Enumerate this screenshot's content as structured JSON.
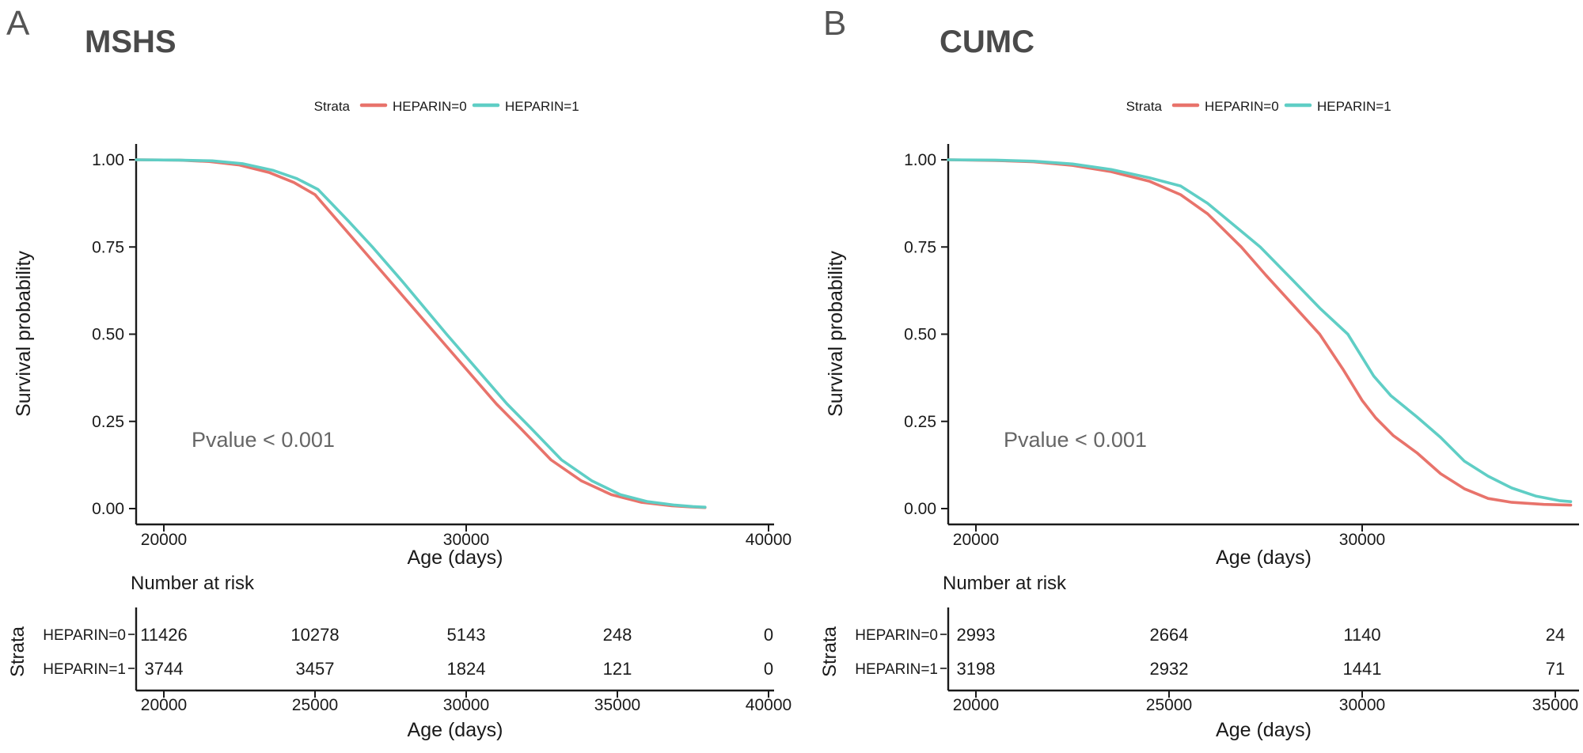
{
  "figure": {
    "background": "#ffffff"
  },
  "colors": {
    "heparin0": "#E8736B",
    "heparin1": "#5FCEC5",
    "title_gray": "#4a4a4a",
    "pvalue_gray": "#666666",
    "axis_black": "#1a1a1a"
  },
  "panels": [
    {
      "letter": "A",
      "title": "MSHS",
      "legend": {
        "title": "Strata",
        "items": [
          {
            "label": "HEPARIN=0",
            "color": "#E8736B"
          },
          {
            "label": "HEPARIN=1",
            "color": "#5FCEC5"
          }
        ]
      },
      "pvalue": "Pvalue < 0.001",
      "xlabel": "Age (days)",
      "ylabel": "Survival probability",
      "yticks": [
        "1.00",
        "0.75",
        "0.50",
        "0.25",
        "0.00"
      ],
      "xticks_main": [
        "20000",
        "30000",
        "40000"
      ],
      "risk": {
        "header": "Number at risk",
        "strata_label": "Strata",
        "xticks": [
          "20000",
          "25000",
          "30000",
          "35000",
          "40000"
        ],
        "rows": [
          {
            "label": "HEPARIN=0",
            "color": "#E8736B",
            "counts": [
              "11426",
              "10278",
              "5143",
              "248",
              "0"
            ]
          },
          {
            "label": "HEPARIN=1",
            "color": "#5FCEC5",
            "counts": [
              "3744",
              "3457",
              "1824",
              "121",
              "0"
            ]
          }
        ],
        "xlabel": "Age (days)"
      }
    },
    {
      "letter": "B",
      "title": "CUMC",
      "legend": {
        "title": "Strata",
        "items": [
          {
            "label": "HEPARIN=0",
            "color": "#E8736B"
          },
          {
            "label": "HEPARIN=1",
            "color": "#5FCEC5"
          }
        ]
      },
      "pvalue": "Pvalue < 0.001",
      "xlabel": "Age (days)",
      "ylabel": "Survival probability",
      "yticks": [
        "1.00",
        "0.75",
        "0.50",
        "0.25",
        "0.00"
      ],
      "xticks_main": [
        "20000",
        "30000"
      ],
      "risk": {
        "header": "Number at risk",
        "strata_label": "Strata",
        "xticks": [
          "20000",
          "25000",
          "30000",
          "35000"
        ],
        "rows": [
          {
            "label": "HEPARIN=0",
            "color": "#E8736B",
            "counts": [
              "2993",
              "2664",
              "1140",
              "24"
            ]
          },
          {
            "label": "HEPARIN=1",
            "color": "#5FCEC5",
            "counts": [
              "3198",
              "2932",
              "1441",
              "71"
            ]
          }
        ],
        "xlabel": "Age (days)"
      }
    }
  ],
  "chart_data": [
    {
      "type": "line",
      "subtype": "kaplan-meier-survival",
      "title": "MSHS",
      "xlabel": "Age (days)",
      "ylabel": "Survival probability",
      "xlim": [
        19085,
        40100
      ],
      "ylim": [
        0,
        1
      ],
      "xticks": [
        20000,
        30000,
        40000
      ],
      "yticks": [
        0,
        0.25,
        0.5,
        0.75,
        1
      ],
      "legend_position": "top",
      "annotation": "Pvalue < 0.001",
      "series": [
        {
          "name": "HEPARIN=0",
          "color": "#E8736B",
          "points": [
            [
              19085,
              1
            ],
            [
              20500,
              0.999
            ],
            [
              21500,
              0.995
            ],
            [
              22500,
              0.985
            ],
            [
              23500,
              0.963
            ],
            [
              24300,
              0.935
            ],
            [
              25000,
              0.9
            ],
            [
              26000,
              0.8
            ],
            [
              26800,
              0.72
            ],
            [
              27800,
              0.62
            ],
            [
              29000,
              0.5
            ],
            [
              30000,
              0.4
            ],
            [
              31000,
              0.3
            ],
            [
              31800,
              0.23
            ],
            [
              32800,
              0.14
            ],
            [
              33800,
              0.08
            ],
            [
              34800,
              0.04
            ],
            [
              35800,
              0.018
            ],
            [
              36800,
              0.008
            ],
            [
              37400,
              0.005
            ],
            [
              37900,
              0.003
            ]
          ]
        },
        {
          "name": "HEPARIN=1",
          "color": "#5FCEC5",
          "points": [
            [
              19085,
              1
            ],
            [
              20500,
              0.999
            ],
            [
              21600,
              0.997
            ],
            [
              22600,
              0.989
            ],
            [
              23600,
              0.97
            ],
            [
              24400,
              0.946
            ],
            [
              25100,
              0.915
            ],
            [
              26100,
              0.825
            ],
            [
              26900,
              0.75
            ],
            [
              27900,
              0.65
            ],
            [
              29350,
              0.5
            ],
            [
              30350,
              0.4
            ],
            [
              31350,
              0.3
            ],
            [
              32150,
              0.23
            ],
            [
              33150,
              0.14
            ],
            [
              34150,
              0.08
            ],
            [
              35100,
              0.04
            ],
            [
              36000,
              0.02
            ],
            [
              36900,
              0.01
            ],
            [
              37500,
              0.006
            ],
            [
              37900,
              0.004
            ]
          ]
        }
      ],
      "number_at_risk": {
        "times": [
          20000,
          25000,
          30000,
          35000,
          40000
        ],
        "rows": [
          {
            "name": "HEPARIN=0",
            "counts": [
              11426,
              10278,
              5143,
              248,
              0
            ]
          },
          {
            "name": "HEPARIN=1",
            "counts": [
              3744,
              3457,
              1824,
              121,
              0
            ]
          }
        ]
      }
    },
    {
      "type": "line",
      "subtype": "kaplan-meier-survival",
      "title": "CUMC",
      "xlabel": "Age (days)",
      "ylabel": "Survival probability",
      "xlim": [
        19283,
        35510
      ],
      "ylim": [
        0,
        1
      ],
      "xticks": [
        20000,
        30000
      ],
      "yticks": [
        0,
        0.25,
        0.5,
        0.75,
        1
      ],
      "legend_position": "top",
      "annotation": "Pvalue < 0.001",
      "series": [
        {
          "name": "HEPARIN=0",
          "color": "#E8736B",
          "points": [
            [
              19283,
              1
            ],
            [
              20500,
              0.998
            ],
            [
              21500,
              0.994
            ],
            [
              22500,
              0.984
            ],
            [
              23500,
              0.966
            ],
            [
              24500,
              0.938
            ],
            [
              25300,
              0.9
            ],
            [
              26000,
              0.845
            ],
            [
              26870,
              0.75
            ],
            [
              27500,
              0.67
            ],
            [
              28200,
              0.585
            ],
            [
              28900,
              0.5
            ],
            [
              29500,
              0.4
            ],
            [
              30000,
              0.31
            ],
            [
              30350,
              0.26
            ],
            [
              30800,
              0.21
            ],
            [
              31415,
              0.16
            ],
            [
              32030,
              0.1
            ],
            [
              32645,
              0.057
            ],
            [
              33260,
              0.029
            ],
            [
              33875,
              0.018
            ],
            [
              34700,
              0.012
            ],
            [
              35400,
              0.01
            ]
          ]
        },
        {
          "name": "HEPARIN=1",
          "color": "#5FCEC5",
          "points": [
            [
              19283,
              1
            ],
            [
              20500,
              0.999
            ],
            [
              21500,
              0.996
            ],
            [
              22500,
              0.988
            ],
            [
              23500,
              0.972
            ],
            [
              24500,
              0.948
            ],
            [
              25300,
              0.925
            ],
            [
              26000,
              0.875
            ],
            [
              26870,
              0.795
            ],
            [
              27360,
              0.75
            ],
            [
              28200,
              0.655
            ],
            [
              28900,
              0.575
            ],
            [
              29630,
              0.5
            ],
            [
              30300,
              0.38
            ],
            [
              30740,
              0.324
            ],
            [
              31415,
              0.263
            ],
            [
              32030,
              0.204
            ],
            [
              32645,
              0.136
            ],
            [
              33260,
              0.093
            ],
            [
              33875,
              0.059
            ],
            [
              34490,
              0.036
            ],
            [
              35100,
              0.023
            ],
            [
              35400,
              0.02
            ]
          ]
        }
      ],
      "number_at_risk": {
        "times": [
          20000,
          25000,
          30000,
          35000
        ],
        "rows": [
          {
            "name": "HEPARIN=0",
            "counts": [
              2993,
              2664,
              1140,
              24
            ]
          },
          {
            "name": "HEPARIN=1",
            "counts": [
              3198,
              2932,
              1441,
              71
            ]
          }
        ]
      }
    }
  ]
}
